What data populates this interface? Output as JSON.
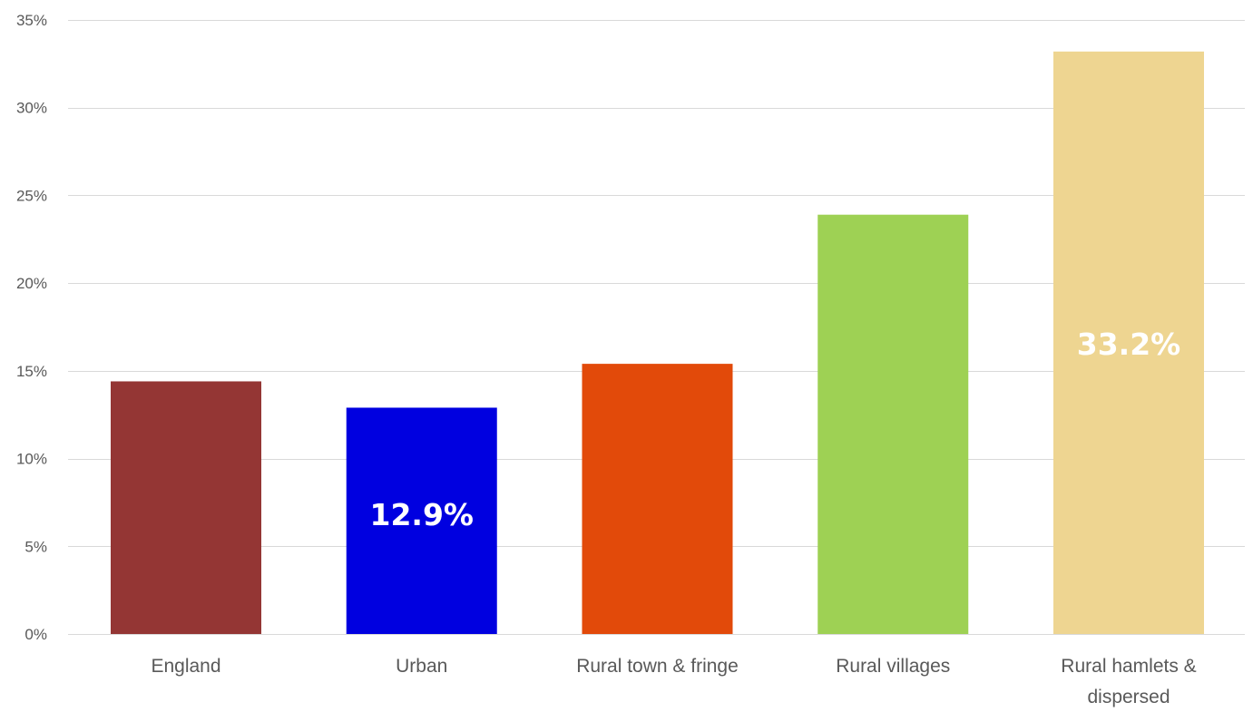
{
  "chart_data": {
    "type": "bar",
    "categories": [
      "England",
      "Urban",
      "Rural town & fringe",
      "Rural villages",
      "Rural hamlets & dispersed"
    ],
    "category_lines": [
      [
        "England"
      ],
      [
        "Urban"
      ],
      [
        "Rural town & fringe"
      ],
      [
        "Rural villages"
      ],
      [
        "Rural hamlets &",
        "dispersed"
      ]
    ],
    "values": [
      14.4,
      12.9,
      15.4,
      23.9,
      33.2
    ],
    "colors": [
      "#943634",
      "#0000E0",
      "#E24A0A",
      "#9ED154",
      "#EED591"
    ],
    "data_labels": [
      "",
      "12.9%",
      "",
      "",
      "33.2%"
    ],
    "ylim": [
      0,
      35
    ],
    "y_ticks": [
      {
        "value": 0,
        "label": "0%"
      },
      {
        "value": 5,
        "label": "5%"
      },
      {
        "value": 10,
        "label": "10%"
      },
      {
        "value": 15,
        "label": "15%"
      },
      {
        "value": 20,
        "label": "20%"
      },
      {
        "value": 25,
        "label": "25%"
      },
      {
        "value": 30,
        "label": "30%"
      },
      {
        "value": 35,
        "label": "35%"
      }
    ],
    "grid": true,
    "title": "",
    "xlabel": "",
    "ylabel": ""
  }
}
